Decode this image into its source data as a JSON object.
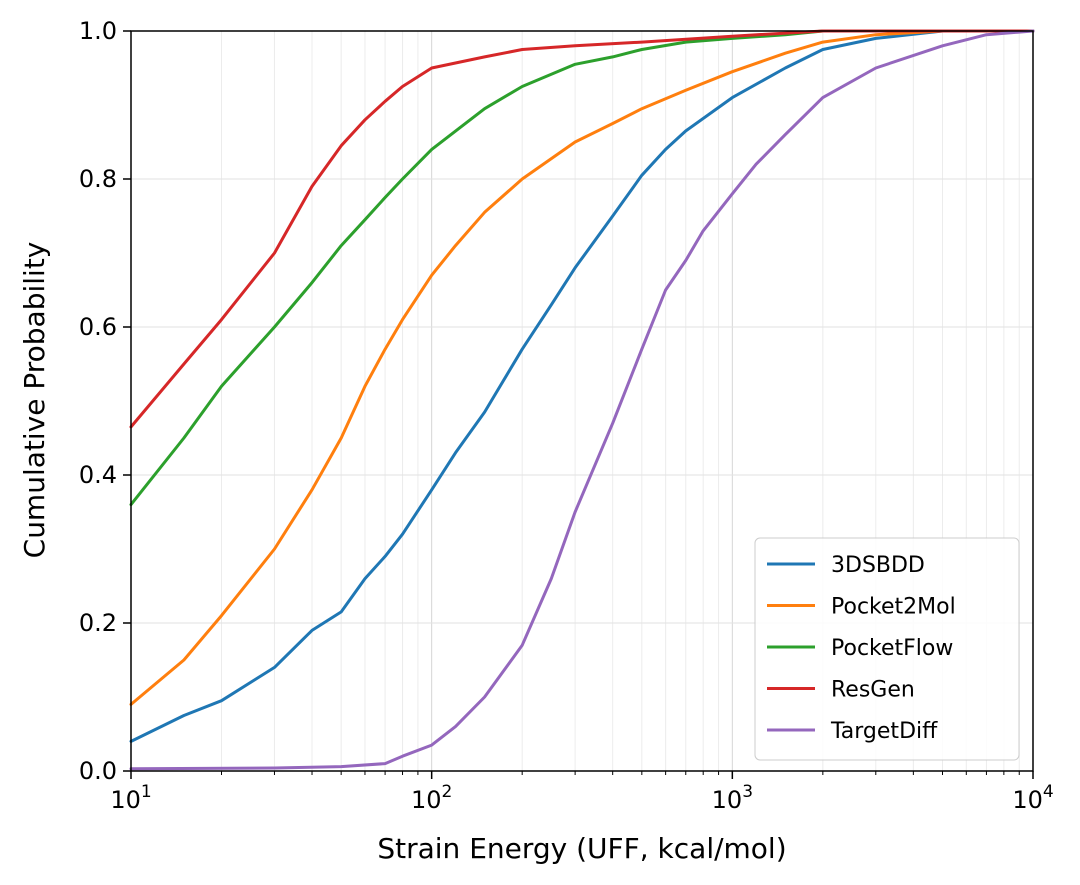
{
  "chart_data": {
    "type": "line",
    "title": "",
    "xlabel": "Strain Energy (UFF, kcal/mol)",
    "ylabel": "Cumulative Probability",
    "xscale": "log",
    "xlim": [
      10,
      10000
    ],
    "ylim": [
      0,
      1
    ],
    "grid": true,
    "legend_position": "lower-right",
    "x_ticks": [
      {
        "value": 10,
        "base": "10",
        "exp": "1"
      },
      {
        "value": 100,
        "base": "10",
        "exp": "2"
      },
      {
        "value": 1000,
        "base": "10",
        "exp": "3"
      },
      {
        "value": 10000,
        "base": "10",
        "exp": "4"
      }
    ],
    "y_ticks": [
      0.0,
      0.2,
      0.4,
      0.6,
      0.8,
      1.0
    ],
    "y_tick_labels": [
      "0.0",
      "0.2",
      "0.4",
      "0.6",
      "0.8",
      "1.0"
    ],
    "series": [
      {
        "name": "3DSBDD",
        "color": "#1f77b4",
        "x": [
          10,
          15,
          20,
          30,
          40,
          50,
          60,
          70,
          80,
          100,
          120,
          150,
          200,
          250,
          300,
          400,
          500,
          600,
          700,
          1000,
          1500,
          2000,
          3000,
          5000,
          10000
        ],
        "y": [
          0.04,
          0.075,
          0.095,
          0.14,
          0.19,
          0.215,
          0.26,
          0.29,
          0.32,
          0.38,
          0.43,
          0.485,
          0.57,
          0.63,
          0.68,
          0.75,
          0.805,
          0.84,
          0.865,
          0.91,
          0.95,
          0.975,
          0.99,
          1.0,
          1.0
        ]
      },
      {
        "name": "Pocket2Mol",
        "color": "#ff7f0e",
        "x": [
          10,
          15,
          20,
          30,
          40,
          50,
          60,
          70,
          80,
          100,
          120,
          150,
          200,
          300,
          400,
          500,
          700,
          1000,
          1500,
          2000,
          3000,
          5000,
          10000
        ],
        "y": [
          0.09,
          0.15,
          0.21,
          0.3,
          0.38,
          0.45,
          0.52,
          0.57,
          0.61,
          0.67,
          0.71,
          0.755,
          0.8,
          0.85,
          0.875,
          0.895,
          0.92,
          0.945,
          0.97,
          0.985,
          0.995,
          1.0,
          1.0
        ]
      },
      {
        "name": "PocketFlow",
        "color": "#2ca02c",
        "x": [
          10,
          15,
          20,
          30,
          40,
          50,
          60,
          70,
          80,
          100,
          150,
          200,
          300,
          400,
          500,
          700,
          1000,
          1500,
          2000,
          3000,
          10000
        ],
        "y": [
          0.36,
          0.45,
          0.52,
          0.6,
          0.66,
          0.71,
          0.745,
          0.775,
          0.8,
          0.84,
          0.895,
          0.925,
          0.955,
          0.965,
          0.975,
          0.985,
          0.99,
          0.995,
          1.0,
          1.0,
          1.0
        ]
      },
      {
        "name": "ResGen",
        "color": "#d62728",
        "x": [
          10,
          15,
          20,
          30,
          40,
          50,
          60,
          70,
          80,
          100,
          150,
          200,
          300,
          500,
          1000,
          2000,
          10000
        ],
        "y": [
          0.465,
          0.55,
          0.61,
          0.7,
          0.79,
          0.845,
          0.88,
          0.905,
          0.925,
          0.95,
          0.965,
          0.975,
          0.98,
          0.985,
          0.993,
          1.0,
          1.0
        ]
      },
      {
        "name": "TargetDiff",
        "color": "#9467bd",
        "x": [
          10,
          30,
          50,
          70,
          80,
          100,
          120,
          150,
          200,
          250,
          300,
          400,
          500,
          600,
          700,
          800,
          1000,
          1200,
          1500,
          2000,
          3000,
          5000,
          7000,
          10000
        ],
        "y": [
          0.003,
          0.004,
          0.006,
          0.01,
          0.02,
          0.035,
          0.06,
          0.1,
          0.17,
          0.26,
          0.35,
          0.47,
          0.57,
          0.65,
          0.69,
          0.73,
          0.78,
          0.82,
          0.86,
          0.91,
          0.95,
          0.98,
          0.995,
          1.0
        ]
      }
    ]
  }
}
